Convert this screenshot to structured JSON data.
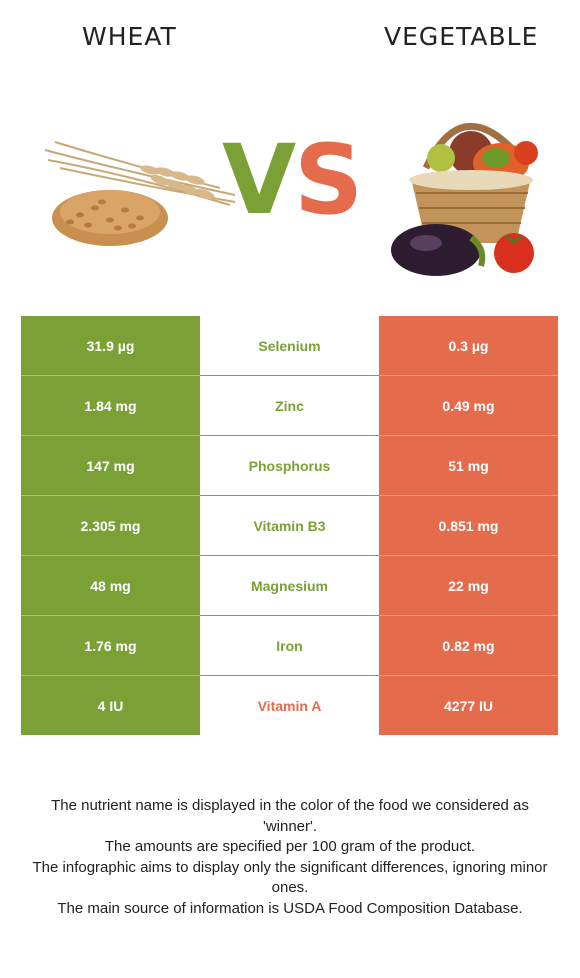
{
  "header": {
    "left_title": "WHEAT",
    "right_title": "VEGETABLE",
    "vs_v": "V",
    "vs_s": "S"
  },
  "colors": {
    "wheat": "#7ba136",
    "vegetable": "#e56b4d"
  },
  "images": {
    "left": "wheat-grains-icon",
    "right": "vegetable-basket-icon"
  },
  "rows": [
    {
      "nutrient": "Selenium",
      "left": "31.9 µg",
      "right": "0.3 µg",
      "winner": "left"
    },
    {
      "nutrient": "Zinc",
      "left": "1.84 mg",
      "right": "0.49 mg",
      "winner": "left"
    },
    {
      "nutrient": "Phosphorus",
      "left": "147 mg",
      "right": "51 mg",
      "winner": "left"
    },
    {
      "nutrient": "Vitamin B3",
      "left": "2.305 mg",
      "right": "0.851 mg",
      "winner": "left"
    },
    {
      "nutrient": "Magnesium",
      "left": "48 mg",
      "right": "22 mg",
      "winner": "left"
    },
    {
      "nutrient": "Iron",
      "left": "1.76 mg",
      "right": "0.82 mg",
      "winner": "left"
    },
    {
      "nutrient": "Vitamin A",
      "left": "4 IU",
      "right": "4277 IU",
      "winner": "right"
    }
  ],
  "footnotes": [
    "The nutrient name is displayed in the color of the food we considered as 'winner'.",
    "The amounts are specified per 100 gram of the product.",
    "The infographic aims to display only the significant differences, ignoring minor ones.",
    "The main source of information is USDA Food Composition Database."
  ]
}
